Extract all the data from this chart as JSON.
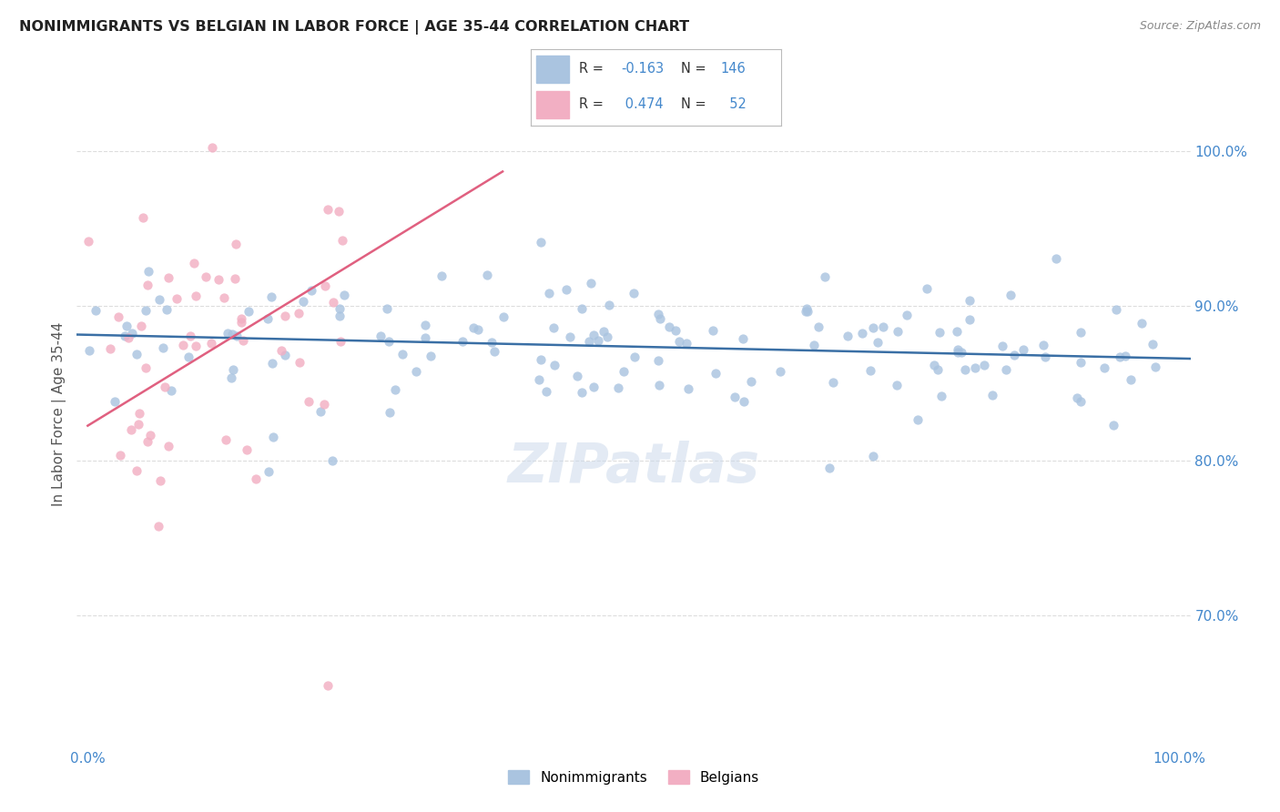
{
  "title": "NONIMMIGRANTS VS BELGIAN IN LABOR FORCE | AGE 35-44 CORRELATION CHART",
  "source": "Source: ZipAtlas.com",
  "ylabel": "In Labor Force | Age 35-44",
  "blue_R": -0.163,
  "blue_N": 146,
  "pink_R": 0.474,
  "pink_N": 52,
  "blue_color": "#aac4e0",
  "pink_color": "#f2afc3",
  "blue_line_color": "#3a6fa5",
  "pink_line_color": "#e06080",
  "background_color": "#ffffff",
  "grid_color": "#dddddd",
  "title_color": "#222222",
  "axis_color": "#4488cc",
  "watermark": "ZIPatlas",
  "xlim": [
    -0.01,
    1.01
  ],
  "ylim": [
    0.615,
    1.045
  ],
  "yticks": [
    0.7,
    0.8,
    0.9,
    1.0
  ],
  "ytick_labels": [
    "70.0%",
    "80.0%",
    "90.0%",
    "100.0%"
  ],
  "xtick_vals": [
    0.0,
    0.25,
    0.5,
    0.75,
    1.0
  ],
  "xtick_labels": [
    "0.0%",
    "",
    "",
    "",
    "100.0%"
  ]
}
